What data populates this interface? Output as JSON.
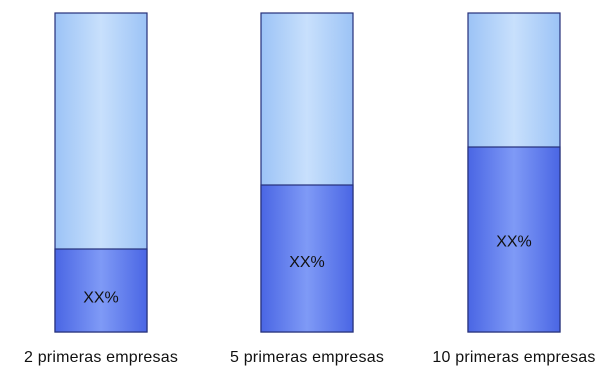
{
  "chart_data": {
    "type": "bar",
    "stacked": true,
    "categories": [
      "2 primeras empresas",
      "5 primeras empresas",
      "10 primeras empresas"
    ],
    "values": [
      0.26,
      0.46,
      0.58
    ],
    "value_labels": [
      "XX%",
      "XX%",
      "XX%"
    ],
    "ylim": [
      0,
      1
    ],
    "grid": false,
    "legend": "none",
    "colors": {
      "filled": "#5f7ef0",
      "filled_edge": "#3d56c8",
      "empty": "#a9ccf8",
      "empty_edge": "#8fb8f0",
      "outline": "#25307a"
    }
  }
}
